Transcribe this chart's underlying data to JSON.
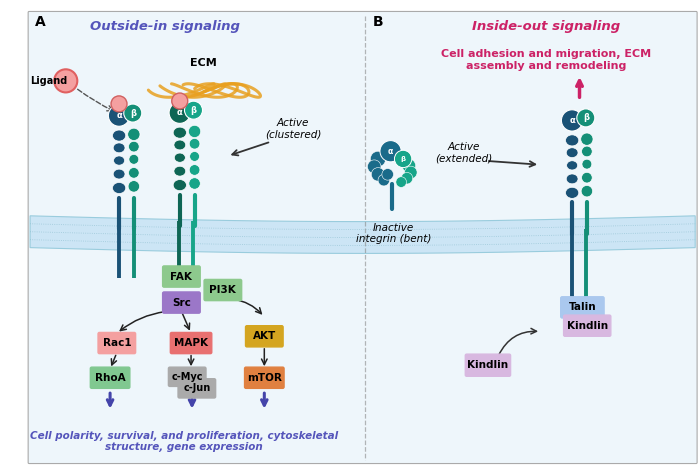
{
  "bg_color": "#eef6fb",
  "membrane_color": "#d0e8f5",
  "integrin_alpha": "#1a5276",
  "integrin_beta": "#148f77",
  "integrin_alpha2": "#0e6655",
  "integrin_beta2": "#1a9e80",
  "ligand_color": "#f4a0a0",
  "ecm_color": "#e8a020",
  "fak_color": "#8dc98d",
  "src_color": "#9b77c8",
  "pi3k_color": "#8dc98d",
  "akt_color": "#d4a520",
  "rac1_color": "#f4a070",
  "rhoa_color": "#80c890",
  "mapk_color": "#e87070",
  "cmyc_color": "#a8a8a8",
  "cjun_color": "#a8a8a8",
  "mtor_color": "#e08040",
  "talin_color": "#aac8ee",
  "kindlin_color": "#d8b8e0",
  "arrow_dark": "#222222",
  "arrow_purple": "#4444aa",
  "arrow_pink": "#cc2266",
  "title_color_A": "#5555bb",
  "title_color_B": "#cc2266",
  "section_A_label": "A",
  "section_B_label": "B",
  "title_A": "Outside-in signaling",
  "title_B": "Inside-out signaling",
  "subtitle_B": "Cell adhesion and migration, ECM\nassembly and remodeling",
  "label_active_clustered": "Active\n(clustered)",
  "label_inactive": "Inactive\nintegrin (bent)",
  "label_active_extended": "Active\n(extended)",
  "label_ligand": "Ligand",
  "label_ecm": "ECM",
  "label_fak": "FAK",
  "label_src": "Src",
  "label_pi3k": "PI3K",
  "label_akt": "AKT",
  "label_rac1": "Rac1",
  "label_rhoa": "RhoA",
  "label_mapk": "MAPK",
  "label_cmyc": "c-Myc",
  "label_cjun": "c-Jun",
  "label_mtor": "mTOR",
  "label_talin": "Talin",
  "label_kindlin": "Kindlin",
  "label_kindlin2": "Kindlin",
  "bottom_text": "Cell polarity, survival, and proliferation, cytoskeletal\nstructure, gene expression"
}
